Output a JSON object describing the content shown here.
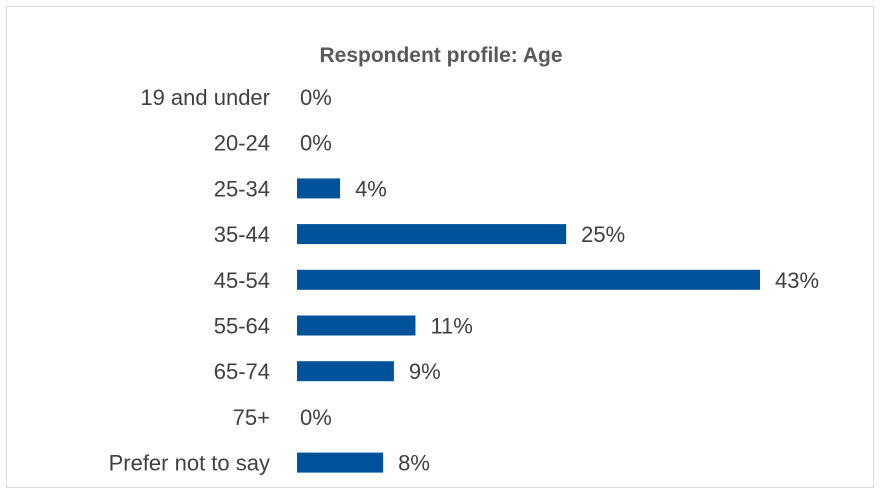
{
  "chart_data": {
    "type": "bar",
    "orientation": "horizontal",
    "title": "Respondent profile: Age",
    "categories": [
      "19 and under",
      "20-24",
      "25-34",
      "35-44",
      "45-54",
      "55-64",
      "65-74",
      "75+",
      "Prefer not to say"
    ],
    "values": [
      0,
      0,
      4,
      25,
      43,
      11,
      9,
      0,
      8
    ],
    "value_labels": [
      "0%",
      "0%",
      "4%",
      "25%",
      "43%",
      "11%",
      "9%",
      "0%",
      "8%"
    ],
    "unit": "%",
    "xlim": [
      0,
      43
    ],
    "grid": false,
    "legend": "none",
    "bar_color": "#00539b"
  }
}
